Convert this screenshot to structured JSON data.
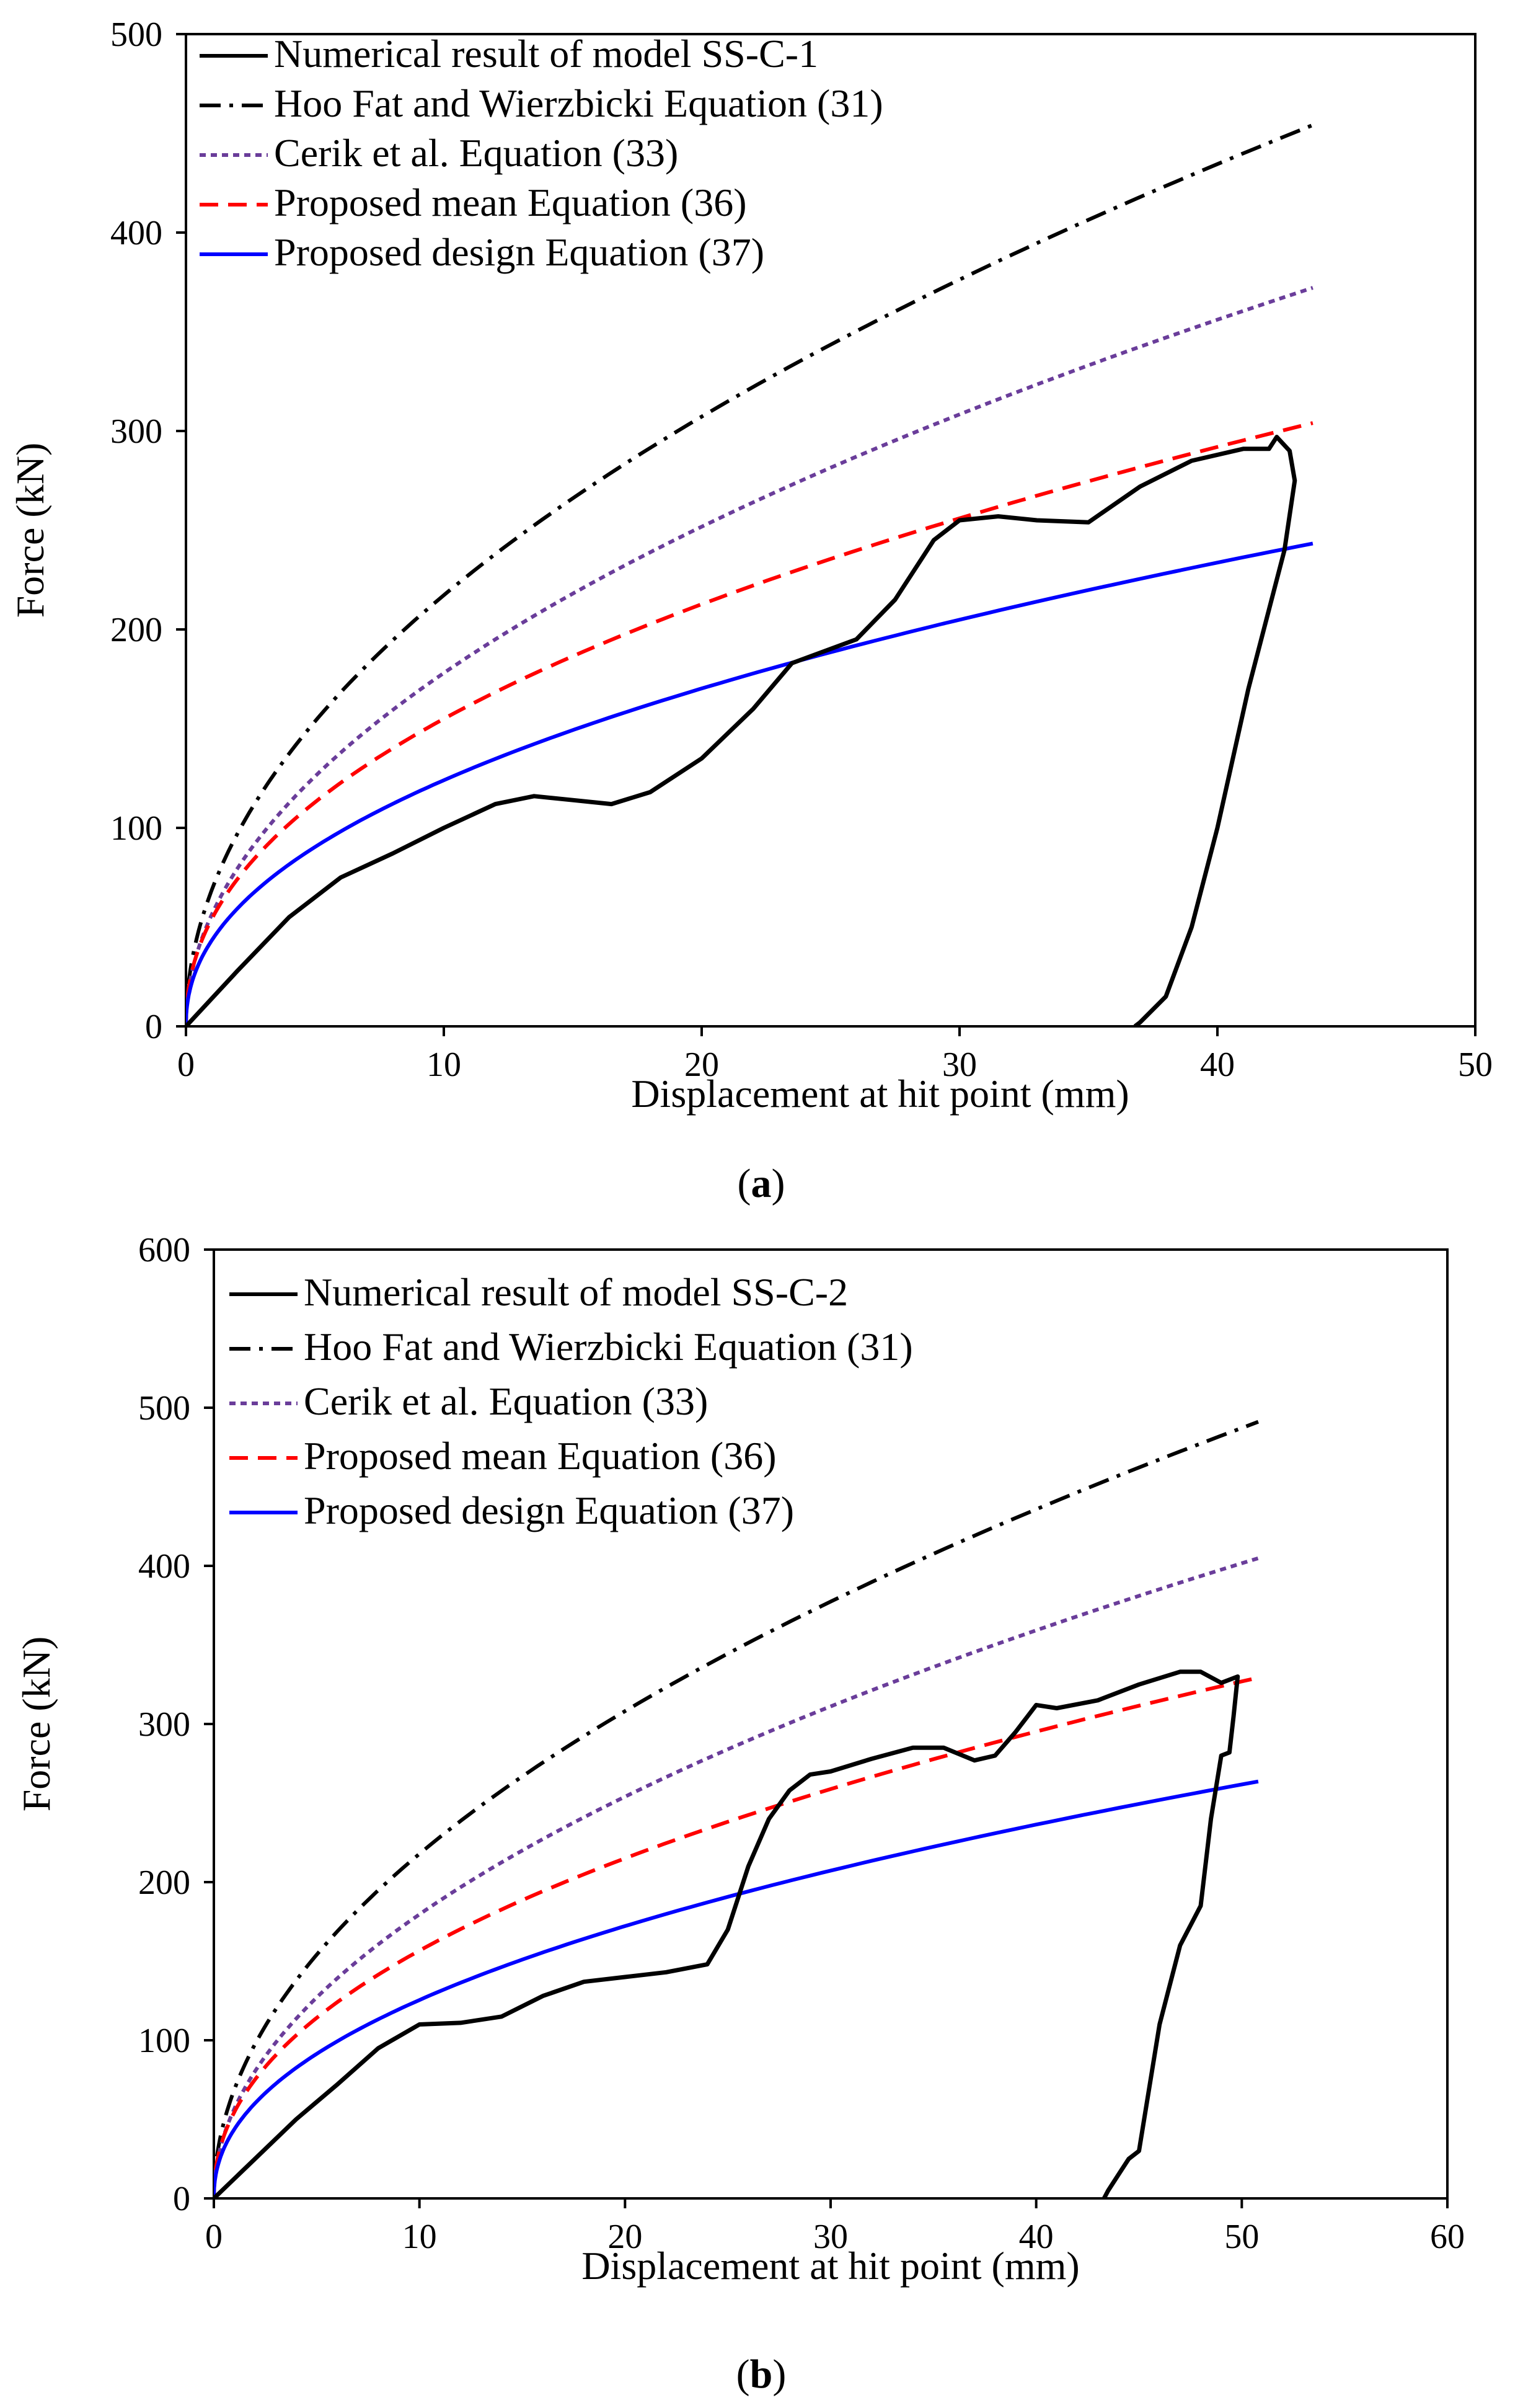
{
  "chart_data": [
    {
      "type": "line",
      "panel": "(a)",
      "xlabel": "Displacement at hit point (mm)",
      "ylabel": "Force (kN)",
      "xlim": [
        0,
        50
      ],
      "ylim": [
        0,
        500
      ],
      "xticks": [
        "0",
        "10",
        "20",
        "30",
        "40",
        "50"
      ],
      "yticks": [
        "0",
        "100",
        "200",
        "300",
        "400",
        "500"
      ],
      "legend_position": "top-left",
      "series": [
        {
          "name": "Numerical result of model SS-C-1",
          "color": "#000000",
          "dash": "solid",
          "x": [
            0,
            2,
            4,
            6,
            8,
            10,
            12,
            13.5,
            15,
            16.5,
            18,
            20,
            22,
            23.5,
            26,
            27.5,
            29,
            30,
            31.5,
            33,
            35,
            37,
            39,
            41,
            42,
            42.3,
            42.8,
            43,
            42.6,
            42,
            41.2,
            40,
            39,
            38,
            37,
            36.8
          ],
          "y": [
            0,
            28,
            55,
            75,
            87,
            100,
            112,
            116,
            114,
            112,
            118,
            135,
            160,
            183,
            195,
            215,
            245,
            255,
            257,
            255,
            254,
            272,
            285,
            291,
            291,
            297,
            290,
            275,
            240,
            210,
            170,
            100,
            50,
            15,
            2,
            0
          ]
        },
        {
          "name": "Hoo Fat and Wierzbicki Equation (31)",
          "color": "#000000",
          "dash": "dashdot",
          "fn": "power",
          "a": 68.7,
          "b": 0.5,
          "xmax": 43.7
        },
        {
          "name": "Cerik et al. Equation (33)",
          "color": "#6a3d9a",
          "dash": "dot",
          "fn": "power",
          "a": 56.3,
          "b": 0.5,
          "xmax": 43.7
        },
        {
          "name": "Proposed mean Equation (36)",
          "color": "#ff0000",
          "dash": "dash",
          "fn": "power",
          "a": 54.1,
          "b": 0.457,
          "xmax": 43.7
        },
        {
          "name": "Proposed design Equation (37)",
          "color": "#0000ff",
          "dash": "solid",
          "fn": "power",
          "a": 43.3,
          "b": 0.457,
          "xmax": 43.7
        }
      ]
    },
    {
      "type": "line",
      "panel": "(b)",
      "xlabel": "Displacement at hit point (mm)",
      "ylabel": "Force (kN)",
      "xlim": [
        0,
        60
      ],
      "ylim": [
        0,
        600
      ],
      "xticks": [
        "0",
        "10",
        "20",
        "30",
        "40",
        "50",
        "60"
      ],
      "yticks": [
        "0",
        "100",
        "200",
        "300",
        "400",
        "500",
        "600"
      ],
      "legend_position": "top-left",
      "series": [
        {
          "name": "Numerical result of model SS-C-2",
          "color": "#000000",
          "dash": "solid",
          "x": [
            0,
            2,
            4,
            6,
            8,
            10,
            12,
            14,
            16,
            18,
            20,
            22,
            24,
            25,
            26,
            27,
            28,
            29,
            30,
            32,
            34,
            35.5,
            37,
            38,
            39,
            40,
            41,
            43,
            45,
            47,
            48,
            49,
            49.8,
            49.6,
            49.4,
            49,
            48.5,
            48,
            47,
            46,
            45.5,
            45,
            44.5,
            44,
            43.5,
            43.3
          ],
          "y": [
            0,
            25,
            50,
            72,
            95,
            110,
            111,
            115,
            128,
            137,
            140,
            143,
            148,
            170,
            210,
            240,
            258,
            268,
            270,
            278,
            285,
            285,
            277,
            280,
            295,
            312,
            310,
            315,
            325,
            333,
            333,
            326,
            330,
            305,
            282,
            280,
            240,
            185,
            160,
            110,
            70,
            30,
            25,
            15,
            5,
            0
          ]
        },
        {
          "name": "Hoo Fat and Wierzbicki Equation (31)",
          "color": "#000000",
          "dash": "dashdot",
          "fn": "power",
          "a": 68.9,
          "b": 0.5,
          "xmax": 50.8
        },
        {
          "name": "Cerik et al. Equation (33)",
          "color": "#6a3d9a",
          "dash": "dot",
          "fn": "power",
          "a": 56.8,
          "b": 0.5,
          "xmax": 50.8
        },
        {
          "name": "Proposed mean Equation (36)",
          "color": "#ff0000",
          "dash": "dash",
          "fn": "power",
          "a": 54.7,
          "b": 0.457,
          "xmax": 50.8
        },
        {
          "name": "Proposed design Equation (37)",
          "color": "#0000ff",
          "dash": "solid",
          "fn": "power",
          "a": 43.8,
          "b": 0.457,
          "xmax": 50.8
        }
      ]
    }
  ]
}
